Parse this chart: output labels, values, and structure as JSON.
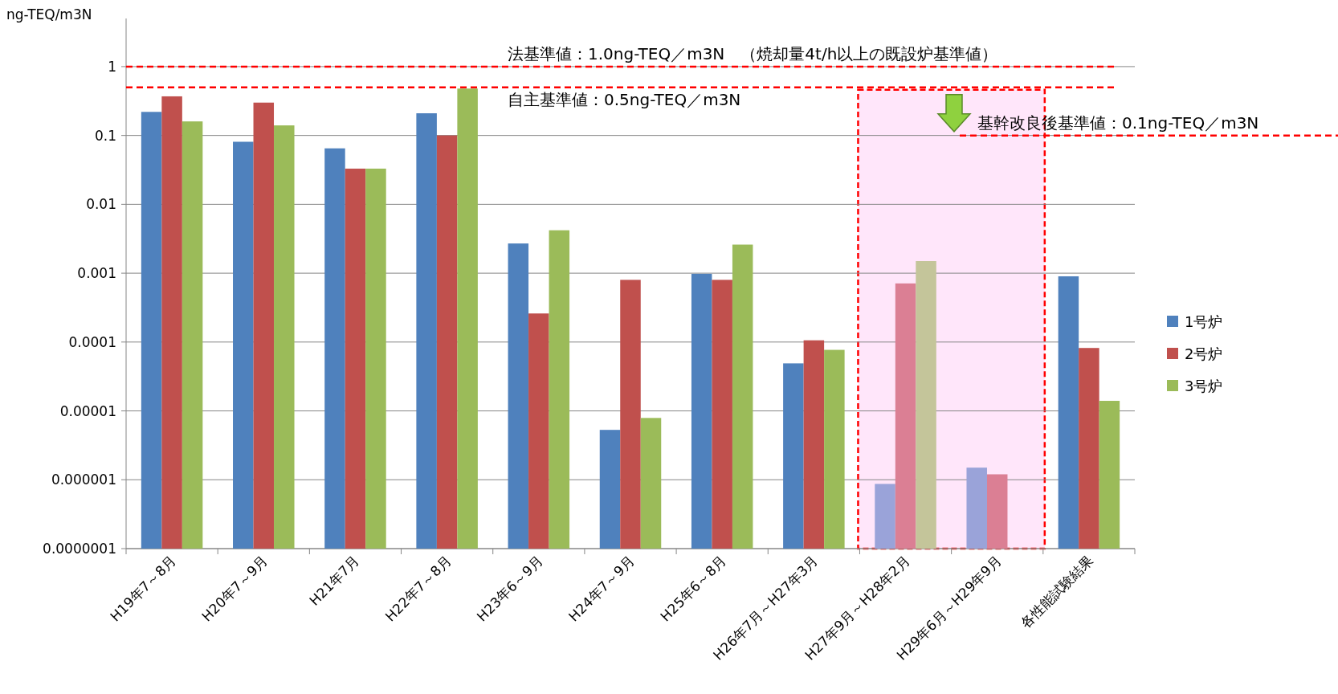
{
  "chart_data": {
    "type": "bar",
    "ylabel": "ng-TEQ/m3N",
    "log": "y",
    "grid": "y",
    "legend": "right",
    "categories": [
      "H19年7～8月",
      "H20年7～9月",
      "H21年7月",
      "H22年7～8月",
      "H23年6～9月",
      "H24年7～9月",
      "H25年6～8月",
      "H26年7月～H27年3月",
      "H27年9月～H28年2月",
      "H29年6月～H29年9月",
      "各性能試験結果"
    ],
    "series": [
      {
        "name": "1号炉",
        "color": "#4f81bd",
        "colors": [
          "#4f81bd",
          "#4f81bd",
          "#4f81bd",
          "#4f81bd",
          "#4f81bd",
          "#4f81bd",
          "#4f81bd",
          "#4f81bd",
          "#9aa3d9",
          "#9aa3d9",
          "#4f81bd"
        ],
        "values": [
          0.22,
          0.081,
          0.065,
          0.21,
          0.0027,
          5.3e-06,
          0.00098,
          4.9e-05,
          8.7e-07,
          1.5e-06,
          0.0009
        ]
      },
      {
        "name": "2号炉",
        "color": "#c0504d",
        "colors": [
          "#c0504d",
          "#c0504d",
          "#c0504d",
          "#c0504d",
          "#c0504d",
          "#c0504d",
          "#c0504d",
          "#c0504d",
          "#db7f94",
          "#db7f94",
          "#c0504d"
        ],
        "values": [
          0.37,
          0.3,
          0.033,
          0.1,
          0.00026,
          0.0008,
          0.0008,
          0.000106,
          0.00071,
          1.2e-06,
          8.2e-05
        ]
      },
      {
        "name": "3号炉",
        "color": "#9bbb59",
        "colors": [
          "#9bbb59",
          "#9bbb59",
          "#9bbb59",
          "#9bbb59",
          "#9bbb59",
          "#9bbb59",
          "#9bbb59",
          "#9bbb59",
          "#c4c59a",
          null,
          "#9bbb59"
        ],
        "values": [
          0.16,
          0.14,
          0.033,
          0.48,
          0.0042,
          7.9e-06,
          0.0026,
          7.7e-05,
          0.0015,
          null,
          1.4e-05
        ]
      }
    ],
    "ylim": [
      1e-07,
      5
    ],
    "yticks": [
      {
        "value": 1e-07,
        "label": "0.0000001"
      },
      {
        "value": 1e-06,
        "label": "0.000001"
      },
      {
        "value": 1e-05,
        "label": "0.00001"
      },
      0.0001,
      0.001,
      0.01,
      0.1,
      1
    ],
    "ref_lines": [
      {
        "axis": "y",
        "value": 1,
        "label": "法基準値：1.0ng-TEQ／m3N　（焼却量4t/h以上の既設炉基準値）",
        "color": "#ff0000",
        "line_style": "dashed"
      },
      {
        "axis": "y",
        "value": 0.5,
        "label": "自主基準値：0.5ng-TEQ／m3N",
        "color": "#ff0000",
        "line_style": "dashed"
      },
      {
        "axis": "y",
        "value": 0.1,
        "label": "基幹改良後基準値：0.1ng-TEQ／m3N",
        "color": "#ff0000",
        "line_style": "dashed"
      }
    ],
    "bands": [
      {
        "axis": "x",
        "from": "H27年9月～H28年2月",
        "to": "H29年6月～H29年9月",
        "color": "#ffe6fa"
      }
    ]
  }
}
